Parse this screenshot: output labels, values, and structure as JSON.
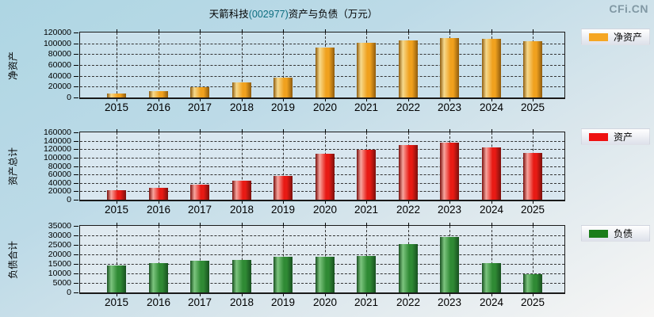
{
  "title": {
    "company": "天箭科技",
    "code": "(002977)",
    "suffix": "资产与负债（万元）"
  },
  "watermark": "CFi.CN",
  "colors": {
    "page_top": "#aed6e3",
    "page_bottom": "#f7f6f5",
    "title_code": "#0d6e80",
    "watermark": "#8198a4",
    "frame": "#1a1a1a",
    "gridline": "#333333"
  },
  "chart_data": [
    {
      "id": "net-assets",
      "type": "bar",
      "title": "净资产",
      "axis_label": "净资产",
      "legend": "净资产",
      "legend_position": "right",
      "grid": true,
      "categories": [
        "2015",
        "2016",
        "2017",
        "2018",
        "2019",
        "2020",
        "2021",
        "2022",
        "2023",
        "2024",
        "2025"
      ],
      "values": [
        7000,
        12000,
        18500,
        27500,
        36000,
        92000,
        101000,
        106000,
        109500,
        108500,
        104000
      ],
      "ylim": [
        0,
        120000
      ],
      "y_step": 20000,
      "y_ticks": [
        "120000",
        "100000",
        "80000",
        "60000",
        "40000",
        "20000",
        "0"
      ],
      "bar_color": {
        "light": "#f6d98c",
        "main": "#f0a11e",
        "dark": "#8f5c0e"
      },
      "legend_swatch": "#f5a623",
      "plot_bg": "#cbe1ec"
    },
    {
      "id": "total-assets",
      "type": "bar",
      "title": "资产总计",
      "axis_label": "资产总计",
      "legend": "资产",
      "legend_position": "right",
      "grid": true,
      "categories": [
        "2015",
        "2016",
        "2017",
        "2018",
        "2019",
        "2020",
        "2021",
        "2022",
        "2023",
        "2024",
        "2025"
      ],
      "values": [
        23000,
        28500,
        36000,
        45000,
        57000,
        109000,
        119000,
        129000,
        136000,
        124000,
        112000
      ],
      "ylim": [
        0,
        160000
      ],
      "y_step": 20000,
      "y_ticks": [
        "160000",
        "140000",
        "120000",
        "100000",
        "80000",
        "60000",
        "40000",
        "20000",
        "0"
      ],
      "bar_color": {
        "light": "#f7a59e",
        "main": "#e81a14",
        "dark": "#7a100d"
      },
      "legend_swatch": "#ee1111",
      "plot_bg": "#d9e7f0"
    },
    {
      "id": "total-liabilities",
      "type": "bar",
      "title": "负债合计",
      "axis_label": "负债合计",
      "legend": "负债",
      "legend_position": "right",
      "grid": true,
      "categories": [
        "2015",
        "2016",
        "2017",
        "2018",
        "2019",
        "2020",
        "2021",
        "2022",
        "2023",
        "2024",
        "2025"
      ],
      "values": [
        14300,
        15300,
        16500,
        17200,
        18700,
        18800,
        19200,
        25400,
        29300,
        15400,
        9700
      ],
      "ylim": [
        0,
        35000
      ],
      "y_step": 5000,
      "y_ticks": [
        "35000",
        "30000",
        "25000",
        "20000",
        "15000",
        "10000",
        "5000",
        "0"
      ],
      "bar_color": {
        "light": "#7cc47e",
        "main": "#2f8a34",
        "dark": "#185020"
      },
      "legend_swatch": "#1a7d1a",
      "plot_bg": "#e0eaf0"
    }
  ]
}
